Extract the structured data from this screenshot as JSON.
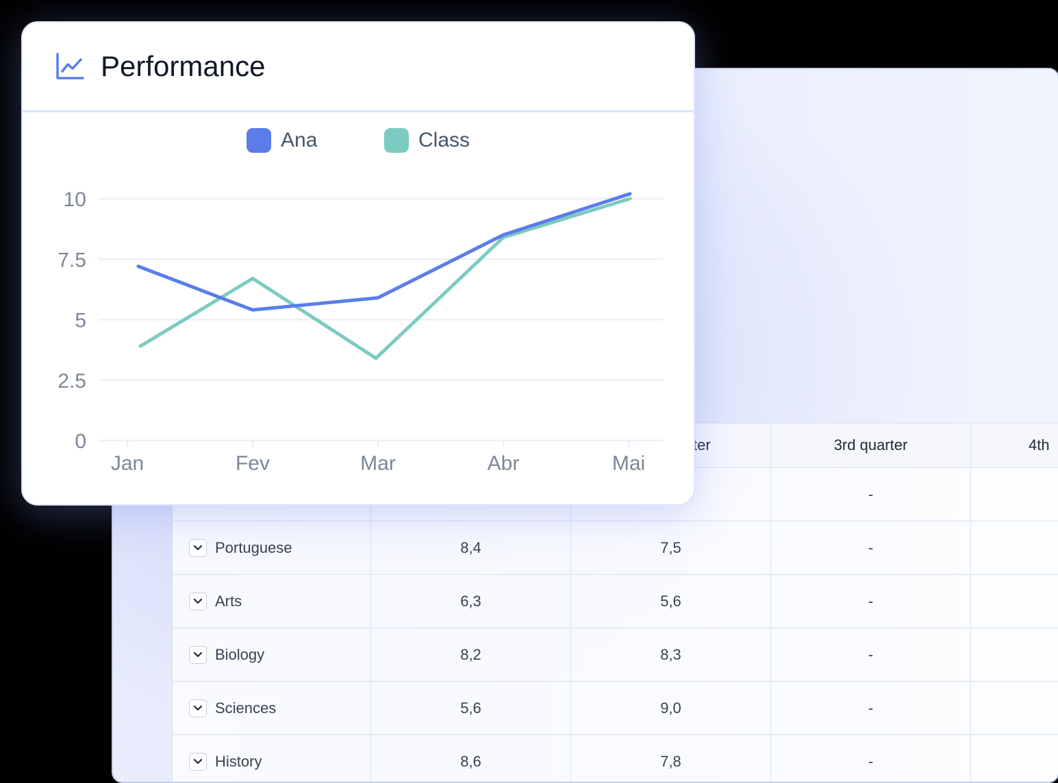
{
  "card": {
    "title": "Performance",
    "icon": "line-chart-icon"
  },
  "colors": {
    "ana": "#5a7de8",
    "class": "#7ccbc2",
    "grid": "#edf0f8"
  },
  "chart_data": {
    "type": "line",
    "categories": [
      "Jan",
      "Fev",
      "Mar",
      "Abr",
      "Mai"
    ],
    "series": [
      {
        "name": "Ana",
        "values": [
          7.2,
          5.4,
          5.9,
          8.5,
          10.2
        ]
      },
      {
        "name": "Class",
        "values": [
          3.9,
          6.7,
          3.4,
          8.4,
          10.0
        ]
      }
    ],
    "yticks": [
      "0",
      "2.5",
      "5",
      "7.5",
      "10"
    ],
    "ylim": [
      0,
      10
    ],
    "grid": true,
    "legend": "top-center",
    "title": "",
    "xlabel": "",
    "ylabel": ""
  },
  "table": {
    "headers": [
      "ter",
      "3rd quarter",
      "4th"
    ],
    "rows": [
      {
        "subject": "",
        "q1": "",
        "q2": "",
        "q3": "-"
      },
      {
        "subject": "Portuguese",
        "q1": "8,4",
        "q2": "7,5",
        "q3": "-"
      },
      {
        "subject": "Arts",
        "q1": "6,3",
        "q2": "5,6",
        "q3": "-"
      },
      {
        "subject": "Biology",
        "q1": "8,2",
        "q2": "8,3",
        "q3": "-"
      },
      {
        "subject": "Sciences",
        "q1": "5,6",
        "q2": "9,0",
        "q3": "-"
      },
      {
        "subject": "History",
        "q1": "8,6",
        "q2": "7,8",
        "q3": "-"
      }
    ]
  }
}
